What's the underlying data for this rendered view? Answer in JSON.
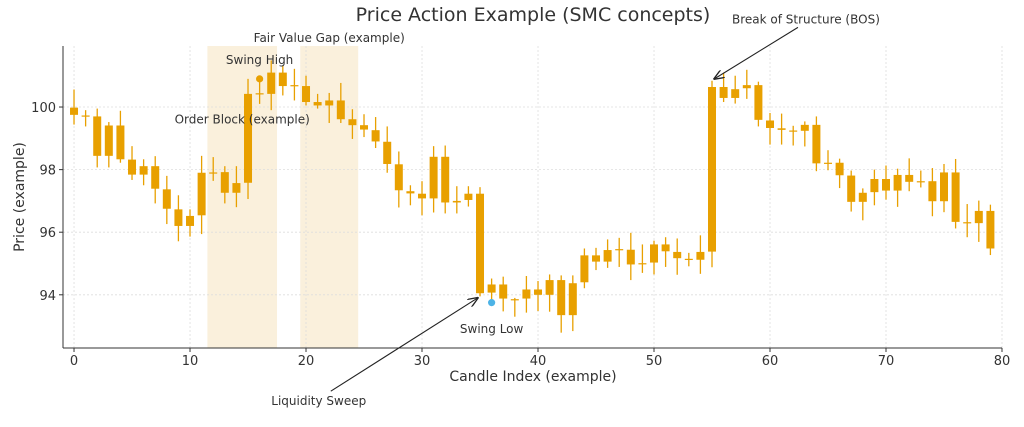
{
  "chart_data": {
    "type": "candlestick",
    "title": "Price Action Example (SMC concepts)",
    "xlabel": "Candle Index (example)",
    "ylabel": "Price (example)",
    "xlim": [
      -0.95,
      80
    ],
    "ylim": [
      92.3,
      101.95
    ],
    "xticks": [
      0,
      10,
      20,
      30,
      40,
      50,
      60,
      70,
      80
    ],
    "yticks": [
      94,
      96,
      98,
      100
    ],
    "grid": true,
    "colors": {
      "candle": "#e8a000",
      "zone": "#faf0dc",
      "swing_high": "#e8a000",
      "swing_low": "#4db3e6",
      "arrow": "#222222"
    },
    "candles": [
      {
        "x": 0,
        "o": 99.98,
        "h": 100.56,
        "l": 99.44,
        "c": 99.75
      },
      {
        "x": 1,
        "o": 99.73,
        "h": 99.9,
        "l": 99.38,
        "c": 99.71
      },
      {
        "x": 2,
        "o": 99.7,
        "h": 99.95,
        "l": 98.07,
        "c": 98.44
      },
      {
        "x": 3,
        "o": 99.41,
        "h": 99.52,
        "l": 98.07,
        "c": 98.44
      },
      {
        "x": 4,
        "o": 99.41,
        "h": 99.88,
        "l": 98.22,
        "c": 98.33
      },
      {
        "x": 5,
        "o": 98.32,
        "h": 98.75,
        "l": 97.67,
        "c": 97.84
      },
      {
        "x": 6,
        "o": 98.11,
        "h": 98.33,
        "l": 97.5,
        "c": 97.84
      },
      {
        "x": 7,
        "o": 98.11,
        "h": 98.43,
        "l": 96.92,
        "c": 97.39
      },
      {
        "x": 8,
        "o": 97.37,
        "h": 97.8,
        "l": 96.26,
        "c": 96.75
      },
      {
        "x": 9,
        "o": 96.73,
        "h": 97.18,
        "l": 95.71,
        "c": 96.2
      },
      {
        "x": 10,
        "o": 96.52,
        "h": 96.73,
        "l": 95.86,
        "c": 96.2
      },
      {
        "x": 11,
        "o": 96.54,
        "h": 98.44,
        "l": 95.94,
        "c": 97.9
      },
      {
        "x": 12,
        "o": 97.9,
        "h": 98.4,
        "l": 97.64,
        "c": 97.91
      },
      {
        "x": 13,
        "o": 97.92,
        "h": 98.11,
        "l": 96.92,
        "c": 97.26
      },
      {
        "x": 14,
        "o": 97.57,
        "h": 98.11,
        "l": 96.8,
        "c": 97.26
      },
      {
        "x": 15,
        "o": 97.58,
        "h": 100.9,
        "l": 97.06,
        "c": 100.42
      },
      {
        "x": 16,
        "o": 100.43,
        "h": 100.85,
        "l": 100.1,
        "c": 100.44
      },
      {
        "x": 17,
        "o": 100.42,
        "h": 101.49,
        "l": 99.9,
        "c": 101.1
      },
      {
        "x": 18,
        "o": 101.1,
        "h": 101.33,
        "l": 100.37,
        "c": 100.67
      },
      {
        "x": 19,
        "o": 100.69,
        "h": 101.22,
        "l": 100.21,
        "c": 100.7
      },
      {
        "x": 20,
        "o": 100.67,
        "h": 101.0,
        "l": 100.05,
        "c": 100.16
      },
      {
        "x": 21,
        "o": 100.16,
        "h": 100.42,
        "l": 99.95,
        "c": 100.05
      },
      {
        "x": 22,
        "o": 100.05,
        "h": 100.45,
        "l": 99.49,
        "c": 100.21
      },
      {
        "x": 23,
        "o": 100.21,
        "h": 100.77,
        "l": 99.49,
        "c": 99.61
      },
      {
        "x": 24,
        "o": 99.61,
        "h": 99.93,
        "l": 98.98,
        "c": 99.42
      },
      {
        "x": 25,
        "o": 99.42,
        "h": 99.77,
        "l": 99.04,
        "c": 99.28
      },
      {
        "x": 26,
        "o": 99.26,
        "h": 99.68,
        "l": 98.69,
        "c": 98.9
      },
      {
        "x": 27,
        "o": 98.89,
        "h": 99.38,
        "l": 97.9,
        "c": 98.18
      },
      {
        "x": 28,
        "o": 98.17,
        "h": 98.58,
        "l": 96.79,
        "c": 97.34
      },
      {
        "x": 29,
        "o": 97.31,
        "h": 97.5,
        "l": 96.86,
        "c": 97.24
      },
      {
        "x": 30,
        "o": 97.23,
        "h": 97.63,
        "l": 96.54,
        "c": 97.08
      },
      {
        "x": 31,
        "o": 97.08,
        "h": 98.75,
        "l": 96.63,
        "c": 98.41
      },
      {
        "x": 32,
        "o": 98.41,
        "h": 98.77,
        "l": 96.6,
        "c": 96.95
      },
      {
        "x": 33,
        "o": 97.0,
        "h": 97.47,
        "l": 96.6,
        "c": 96.95
      },
      {
        "x": 34,
        "o": 97.03,
        "h": 97.47,
        "l": 96.82,
        "c": 97.23
      },
      {
        "x": 35,
        "o": 97.23,
        "h": 97.44,
        "l": 93.95,
        "c": 94.05
      },
      {
        "x": 36,
        "o": 94.07,
        "h": 94.52,
        "l": 93.8,
        "c": 94.33
      },
      {
        "x": 37,
        "o": 94.33,
        "h": 94.58,
        "l": 93.47,
        "c": 93.88
      },
      {
        "x": 38,
        "o": 93.86,
        "h": 93.9,
        "l": 93.3,
        "c": 93.85
      },
      {
        "x": 39,
        "o": 93.88,
        "h": 94.6,
        "l": 93.43,
        "c": 94.17
      },
      {
        "x": 40,
        "o": 94.17,
        "h": 94.44,
        "l": 93.48,
        "c": 94.0
      },
      {
        "x": 41,
        "o": 94.0,
        "h": 94.65,
        "l": 93.46,
        "c": 94.47
      },
      {
        "x": 42,
        "o": 94.47,
        "h": 94.62,
        "l": 92.79,
        "c": 93.35
      },
      {
        "x": 43,
        "o": 93.35,
        "h": 94.62,
        "l": 92.84,
        "c": 94.37
      },
      {
        "x": 44,
        "o": 94.4,
        "h": 95.48,
        "l": 94.21,
        "c": 95.26
      },
      {
        "x": 45,
        "o": 95.26,
        "h": 95.5,
        "l": 94.79,
        "c": 95.06
      },
      {
        "x": 46,
        "o": 95.06,
        "h": 95.77,
        "l": 94.86,
        "c": 95.43
      },
      {
        "x": 47,
        "o": 95.44,
        "h": 95.82,
        "l": 94.89,
        "c": 95.46
      },
      {
        "x": 48,
        "o": 95.44,
        "h": 95.98,
        "l": 94.47,
        "c": 94.97
      },
      {
        "x": 49,
        "o": 95.0,
        "h": 95.61,
        "l": 94.7,
        "c": 95.01
      },
      {
        "x": 50,
        "o": 95.03,
        "h": 95.73,
        "l": 94.65,
        "c": 95.61
      },
      {
        "x": 51,
        "o": 95.61,
        "h": 95.84,
        "l": 94.89,
        "c": 95.39
      },
      {
        "x": 52,
        "o": 95.37,
        "h": 95.8,
        "l": 94.64,
        "c": 95.17
      },
      {
        "x": 53,
        "o": 95.14,
        "h": 95.34,
        "l": 94.91,
        "c": 95.15
      },
      {
        "x": 54,
        "o": 95.12,
        "h": 95.9,
        "l": 94.67,
        "c": 95.37
      },
      {
        "x": 55,
        "o": 95.38,
        "h": 100.84,
        "l": 94.88,
        "c": 100.64
      },
      {
        "x": 56,
        "o": 100.64,
        "h": 101.1,
        "l": 100.16,
        "c": 100.29
      },
      {
        "x": 57,
        "o": 100.29,
        "h": 101.0,
        "l": 100.11,
        "c": 100.57
      },
      {
        "x": 58,
        "o": 100.6,
        "h": 101.19,
        "l": 100.26,
        "c": 100.7
      },
      {
        "x": 59,
        "o": 100.7,
        "h": 100.81,
        "l": 99.38,
        "c": 99.59
      },
      {
        "x": 60,
        "o": 99.57,
        "h": 99.81,
        "l": 98.8,
        "c": 99.33
      },
      {
        "x": 61,
        "o": 99.32,
        "h": 99.79,
        "l": 98.8,
        "c": 99.27
      },
      {
        "x": 62,
        "o": 99.24,
        "h": 99.4,
        "l": 98.77,
        "c": 99.25
      },
      {
        "x": 63,
        "o": 99.24,
        "h": 99.54,
        "l": 98.74,
        "c": 99.43
      },
      {
        "x": 64,
        "o": 99.43,
        "h": 99.7,
        "l": 97.95,
        "c": 98.2
      },
      {
        "x": 65,
        "o": 98.21,
        "h": 98.62,
        "l": 97.98,
        "c": 98.22
      },
      {
        "x": 66,
        "o": 98.22,
        "h": 98.35,
        "l": 97.41,
        "c": 97.82
      },
      {
        "x": 67,
        "o": 97.81,
        "h": 97.97,
        "l": 96.66,
        "c": 96.97
      },
      {
        "x": 68,
        "o": 96.97,
        "h": 97.4,
        "l": 96.38,
        "c": 97.26
      },
      {
        "x": 69,
        "o": 97.28,
        "h": 98.0,
        "l": 96.86,
        "c": 97.7
      },
      {
        "x": 70,
        "o": 97.7,
        "h": 98.13,
        "l": 97.04,
        "c": 97.33
      },
      {
        "x": 71,
        "o": 97.33,
        "h": 98.03,
        "l": 96.81,
        "c": 97.83
      },
      {
        "x": 72,
        "o": 97.83,
        "h": 98.36,
        "l": 97.31,
        "c": 97.61
      },
      {
        "x": 73,
        "o": 97.62,
        "h": 97.97,
        "l": 97.43,
        "c": 97.63
      },
      {
        "x": 74,
        "o": 97.63,
        "h": 98.05,
        "l": 96.51,
        "c": 96.99
      },
      {
        "x": 75,
        "o": 96.99,
        "h": 98.18,
        "l": 96.64,
        "c": 97.91
      },
      {
        "x": 76,
        "o": 97.91,
        "h": 98.34,
        "l": 96.12,
        "c": 96.33
      },
      {
        "x": 77,
        "o": 96.31,
        "h": 96.9,
        "l": 95.84,
        "c": 96.32
      },
      {
        "x": 78,
        "o": 96.29,
        "h": 97.01,
        "l": 95.69,
        "c": 96.68
      },
      {
        "x": 79,
        "o": 96.68,
        "h": 96.88,
        "l": 95.27,
        "c": 95.48
      }
    ],
    "zones": [
      {
        "label": "Order Block (example)",
        "x0": 11.5,
        "x1": 17.5
      },
      {
        "label": "Fair Value Gap (example)",
        "x0": 19.5,
        "x1": 24.5
      }
    ],
    "markers": [
      {
        "label": "Swing High",
        "x": 16,
        "y": 100.9,
        "color": "swing_high"
      },
      {
        "label": "Swing Low",
        "x": 36,
        "y": 93.75,
        "color": "swing_low"
      }
    ],
    "annotations": [
      {
        "text": "Swing High",
        "x": 16,
        "y": 101.5
      },
      {
        "text": "Order Block (example)",
        "x": 14.5,
        "y": 99.6
      },
      {
        "text": "Fair Value Gap (example)",
        "x": 22,
        "y": 102.3
      },
      {
        "text": "Swing Low",
        "x": 36,
        "y": 92.9
      },
      {
        "text": "Liquidity Sweep",
        "x": 21.1,
        "y": 90.6,
        "arrow_to": [
          34.8,
          93.9
        ]
      },
      {
        "text": "Break of Structure (BOS)",
        "x": 63.1,
        "y": 102.8,
        "arrow_to": [
          55.2,
          100.9
        ]
      }
    ]
  }
}
